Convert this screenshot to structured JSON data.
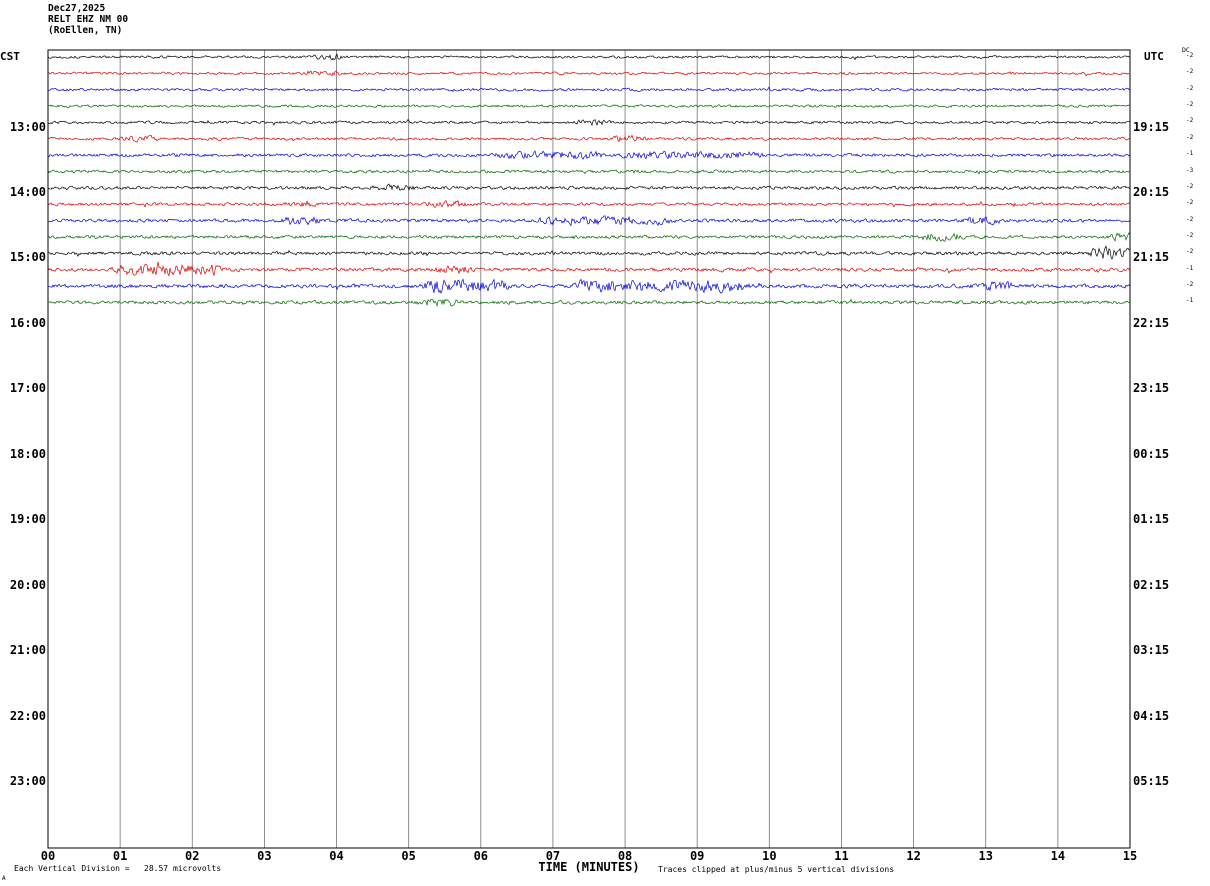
{
  "header": {
    "date": "Dec27,2025",
    "station": "RELT EHZ NM 00",
    "location": "(RoEllen, TN)"
  },
  "axes": {
    "left_tz": "CST",
    "right_tz": "UTC",
    "dc_header": "DC",
    "left_times": [
      "13:00",
      "14:00",
      "15:00",
      "16:00",
      "17:00",
      "18:00",
      "19:00",
      "20:00",
      "21:00",
      "22:00",
      "23:00"
    ],
    "right_times": [
      "19:15",
      "20:15",
      "21:15",
      "22:15",
      "23:15",
      "00:15",
      "01:15",
      "02:15",
      "03:15",
      "04:15",
      "05:15"
    ],
    "x_ticks": [
      "00",
      "01",
      "02",
      "03",
      "04",
      "05",
      "06",
      "07",
      "08",
      "09",
      "10",
      "11",
      "12",
      "13",
      "14",
      "15"
    ],
    "x_label": "TIME (MINUTES)"
  },
  "footer": {
    "scale_note": "Each Vertical Division =   28.57 microvolts",
    "clip_note": "Traces clipped at plus/minus 5 vertical divisions",
    "corner_mark": "A"
  },
  "chart_data": {
    "type": "line",
    "title": "RELT EHZ NM 00 (RoEllen, TN) Dec27,2025 helicorder",
    "x_unit": "minutes",
    "x_range": [
      0,
      15
    ],
    "minutes_per_row": 15,
    "row_color_cycle": [
      "black",
      "red",
      "blue",
      "green"
    ],
    "clip_divisions": 5,
    "microvolts_per_division": 28.57,
    "no_data_after": "15:45 CST",
    "traces": [
      {
        "cst_start": "12:00",
        "color": "#000000",
        "dc": "-2",
        "amp": 1.1,
        "bursts": [
          [
            3.75,
            4.05,
            1.8
          ]
        ]
      },
      {
        "cst_start": "12:15",
        "color": "#dd0000",
        "dc": "-2",
        "amp": 1.1,
        "bursts": [
          [
            3.7,
            4.0,
            1.2
          ]
        ]
      },
      {
        "cst_start": "12:30",
        "color": "#0000dd",
        "dc": "-2",
        "amp": 1.2,
        "bursts": []
      },
      {
        "cst_start": "12:45",
        "color": "#006600",
        "dc": "-2",
        "amp": 1.1,
        "bursts": []
      },
      {
        "cst_start": "13:00",
        "color": "#000000",
        "dc": "-2",
        "amp": 1.2,
        "bursts": [
          [
            7.4,
            7.7,
            1.2
          ]
        ]
      },
      {
        "cst_start": "13:15",
        "color": "#dd0000",
        "dc": "-2",
        "amp": 1.2,
        "bursts": [
          [
            1.1,
            1.4,
            1.5
          ],
          [
            7.9,
            8.2,
            1.5
          ]
        ]
      },
      {
        "cst_start": "13:30",
        "color": "#0000dd",
        "dc": "-1",
        "amp": 1.4,
        "bursts": [
          [
            6.3,
            7.6,
            1.6
          ],
          [
            8.0,
            9.8,
            1.4
          ]
        ]
      },
      {
        "cst_start": "13:45",
        "color": "#006600",
        "dc": "-3",
        "amp": 1.3,
        "bursts": []
      },
      {
        "cst_start": "14:00",
        "color": "#000000",
        "dc": "-2",
        "amp": 1.4,
        "bursts": [
          [
            4.6,
            5.0,
            1.2
          ]
        ]
      },
      {
        "cst_start": "14:15",
        "color": "#dd0000",
        "dc": "-2",
        "amp": 1.3,
        "bursts": [
          [
            3.3,
            3.6,
            1.2
          ],
          [
            5.3,
            5.7,
            1.4
          ]
        ]
      },
      {
        "cst_start": "14:30",
        "color": "#0000dd",
        "dc": "-2",
        "amp": 1.5,
        "bursts": [
          [
            3.35,
            3.65,
            1.8
          ],
          [
            6.9,
            8.6,
            1.6
          ],
          [
            12.8,
            13.1,
            1.4
          ]
        ]
      },
      {
        "cst_start": "14:45",
        "color": "#006600",
        "dc": "-2",
        "amp": 1.4,
        "bursts": [
          [
            12.2,
            12.6,
            1.6
          ],
          [
            14.8,
            15.0,
            1.6
          ]
        ]
      },
      {
        "cst_start": "15:00",
        "color": "#000000",
        "dc": "-2",
        "amp": 1.5,
        "bursts": [
          [
            14.55,
            14.9,
            3.2
          ]
        ]
      },
      {
        "cst_start": "15:15",
        "color": "#dd0000",
        "dc": "-1",
        "amp": 1.6,
        "bursts": [
          [
            1.0,
            2.3,
            2.2
          ],
          [
            5.5,
            5.8,
            1.6
          ]
        ]
      },
      {
        "cst_start": "15:30",
        "color": "#0000dd",
        "dc": "-2",
        "amp": 1.7,
        "bursts": [
          [
            5.3,
            6.3,
            2.6
          ],
          [
            7.4,
            9.6,
            2.2
          ],
          [
            12.9,
            13.3,
            1.4
          ]
        ]
      },
      {
        "cst_start": "15:45",
        "color": "#006600",
        "dc": "-1",
        "amp": 1.5,
        "bursts": [
          [
            5.2,
            5.6,
            1.4
          ]
        ]
      }
    ]
  }
}
